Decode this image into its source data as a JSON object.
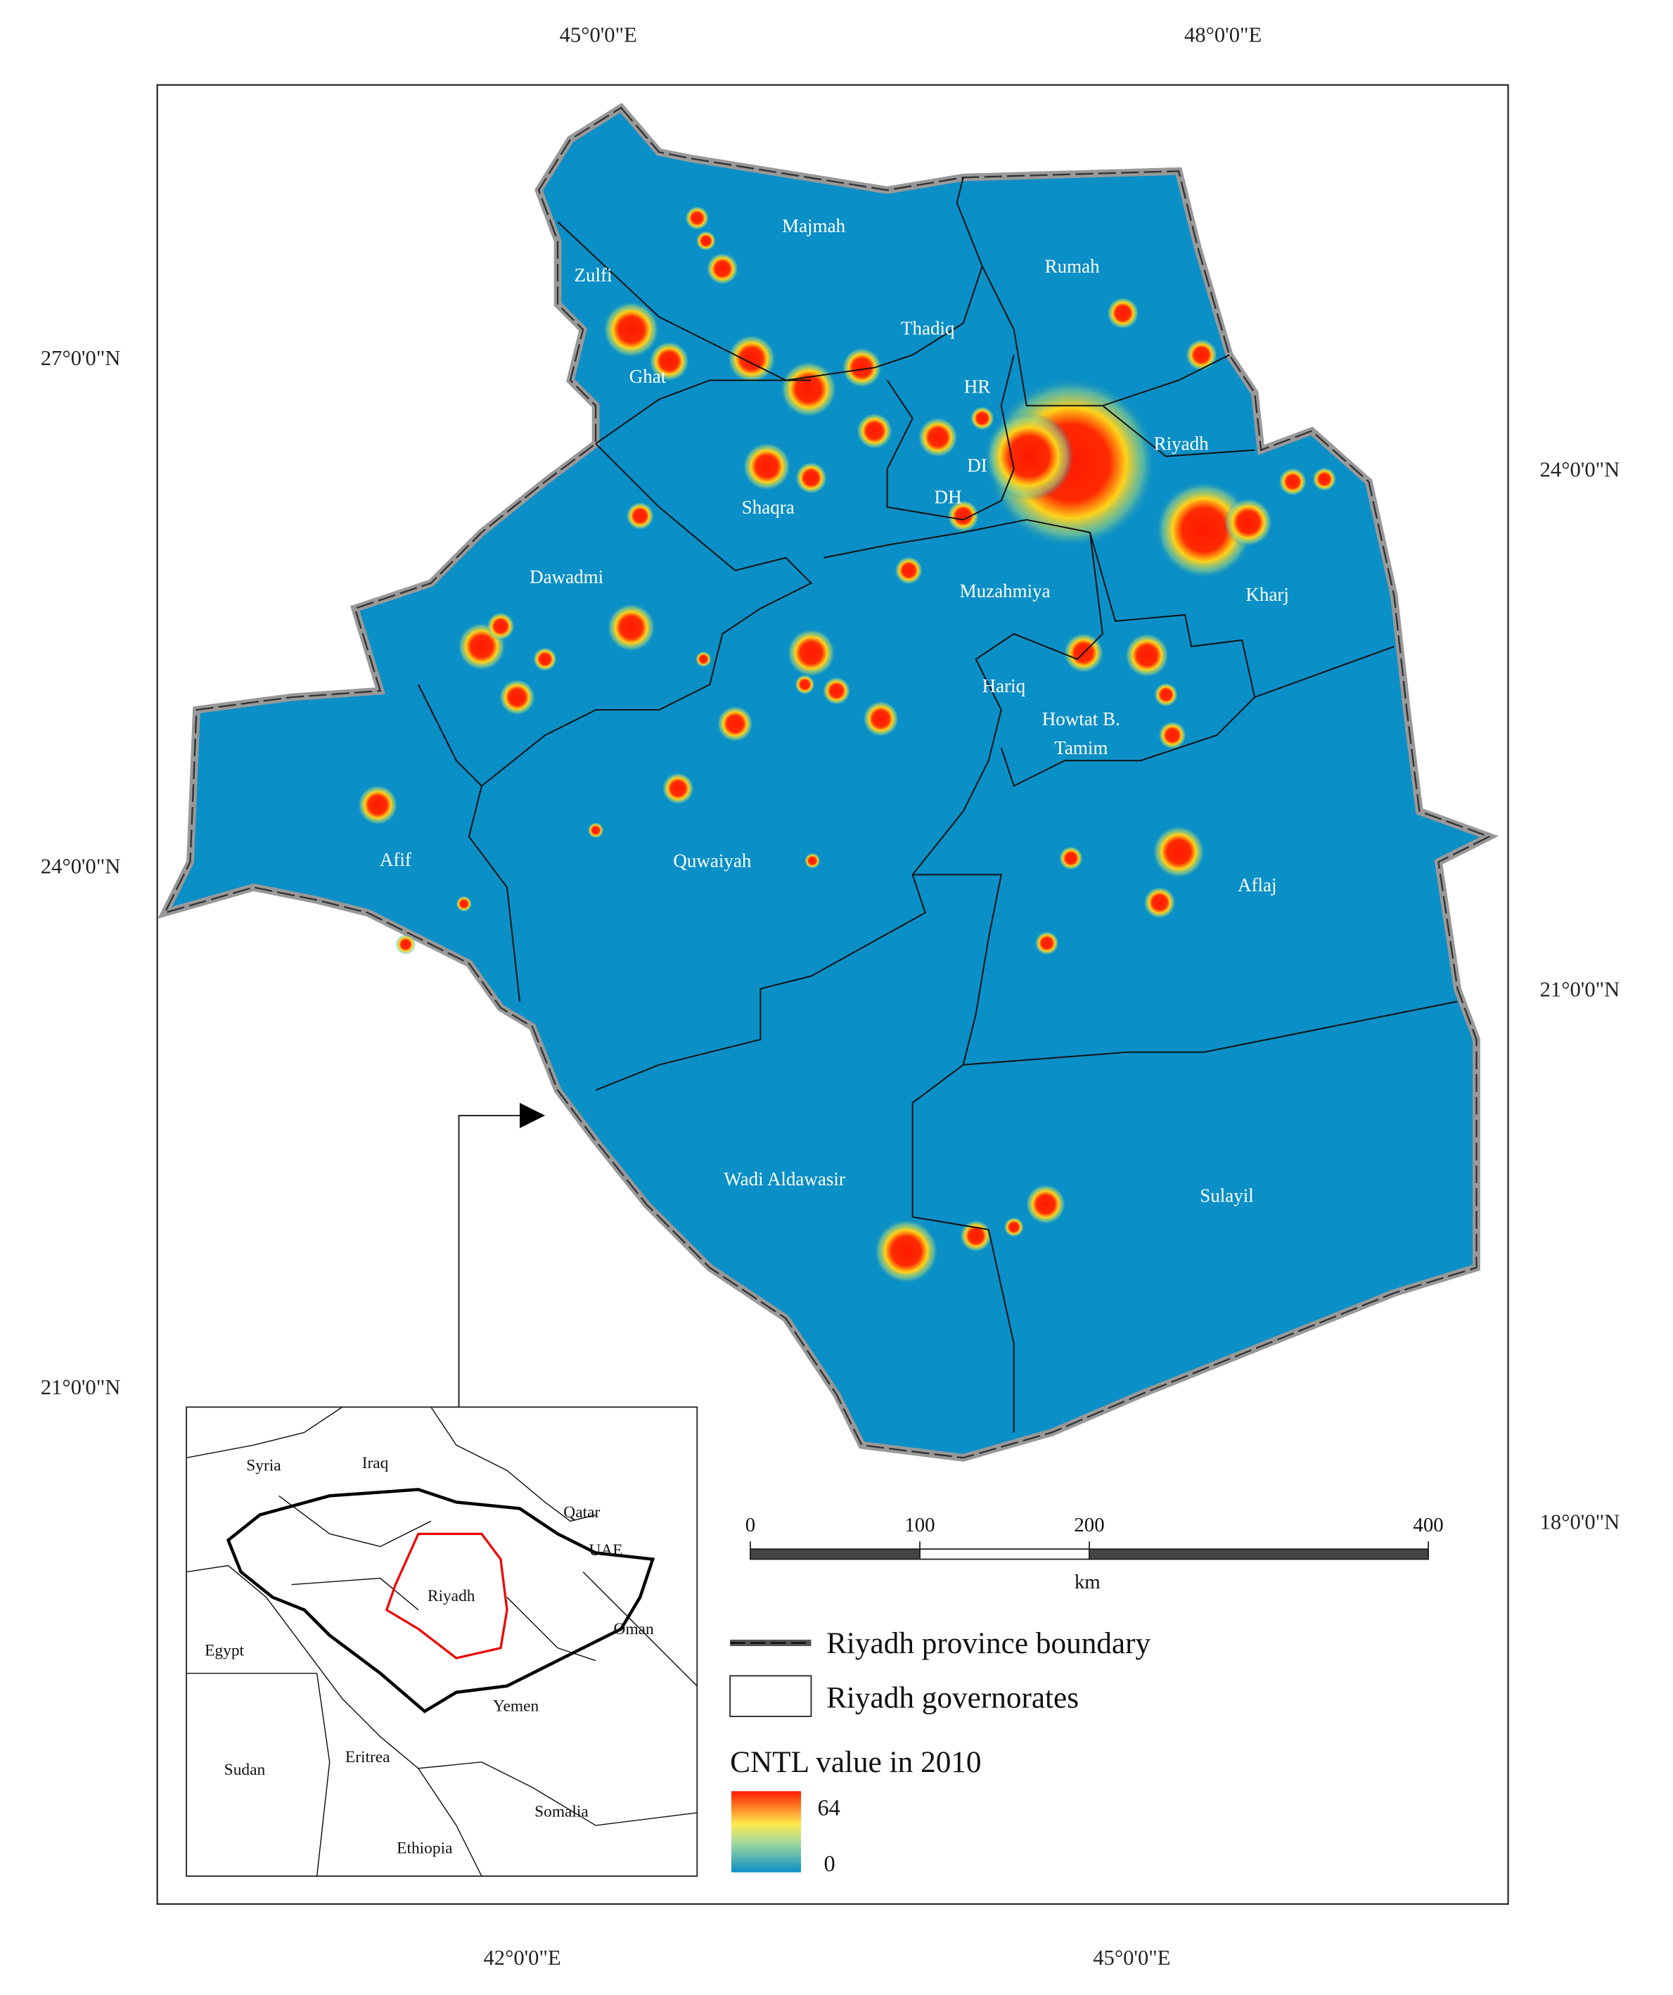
{
  "axes": {
    "top": [
      "45°0'0\"E",
      "48°0'0\"E"
    ],
    "bottom": [
      "42°0'0\"E",
      "45°0'0\"E"
    ],
    "left": [
      "27°0'0\"N",
      "24°0'0\"N",
      "21°0'0\"N"
    ],
    "right": [
      "24°0'0\"N",
      "21°0'0\"N",
      "18°0'0\"N"
    ]
  },
  "governorates": [
    "Majmah",
    "Rumah",
    "Zulfi",
    "Thadiq",
    "Ghat",
    "HR",
    "Riyadh",
    "DI",
    "DH",
    "Shaqra",
    "Dawadmi",
    "Muzahmiya",
    "Kharj",
    "Hariq",
    "Howtat B.",
    "Tamim",
    "Afif",
    "Quwaiyah",
    "Aflaj",
    "Wadi Aldawasir",
    "Sulayil"
  ],
  "inset": {
    "labels": [
      "Syria",
      "Iraq",
      "Qatar",
      "UAE",
      "Riyadh",
      "Egypt",
      "Oman",
      "Yemen",
      "Sudan",
      "Eritrea",
      "Somalia",
      "Ethiopia"
    ]
  },
  "scale_bar": {
    "ticks": [
      0,
      100,
      200,
      400
    ],
    "unit": "km"
  },
  "legend": {
    "boundary": "Riyadh province boundary",
    "governorates": "Riyadh governorates",
    "colorbar": {
      "title": "CNTL value in 2010",
      "max": 64,
      "min": 0
    }
  }
}
